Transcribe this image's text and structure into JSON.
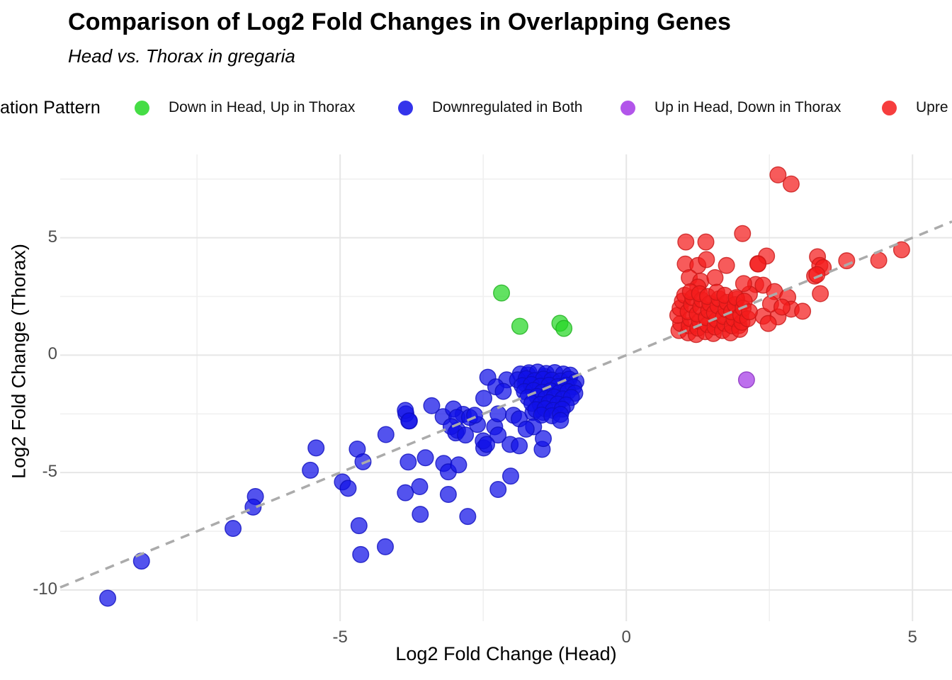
{
  "title": "Comparison of Log2 Fold Changes in Overlapping Genes",
  "subtitle": "Head vs. Thorax in gregaria",
  "legend": {
    "title": "ation Pattern",
    "note": "legend title and last item are cropped at the image edges",
    "items": [
      {
        "label": "Down in Head, Up in Thorax",
        "color": "#25D725"
      },
      {
        "label": "Downregulated in Both",
        "color": "#1111E8"
      },
      {
        "label": "Up in Head, Down in Thorax",
        "color": "#A437E6"
      },
      {
        "label": "Upre",
        "color": "#F41C1C"
      }
    ]
  },
  "chart_data": {
    "type": "scatter",
    "title": "Comparison of Log2 Fold Changes in Overlapping Genes",
    "subtitle": "Head vs. Thorax in gregaria",
    "xlabel": "Log2 Fold Change (Head)",
    "ylabel": "Log2 Fold Change (Thorax)",
    "xlim": [
      -9.89,
      5.69
    ],
    "ylim": [
      -11.33,
      8.55
    ],
    "x_ticks": [
      -5,
      0,
      5
    ],
    "y_ticks": [
      -10,
      -5,
      0,
      5
    ],
    "x_minor_ticks": [
      -7.5,
      -2.5,
      2.5
    ],
    "y_minor_ticks": [
      -7.5,
      -2.5,
      2.5,
      7.5
    ],
    "grid": true,
    "legend_position": "top",
    "grid_major_color": "#E6E6E6",
    "grid_minor_color": "#F0F0F0",
    "reference_line": {
      "type": "identity y=x",
      "style": "dashed",
      "color": "#ABABAB"
    },
    "series": [
      {
        "name": "Down in Head, Up in Thorax",
        "color": "#25D725",
        "points": [
          [
            -2.18,
            2.65
          ],
          [
            -1.86,
            1.23
          ],
          [
            -1.16,
            1.36
          ],
          [
            -1.09,
            1.14
          ]
        ]
      },
      {
        "name": "Downregulated in Both",
        "color": "#1111E8",
        "points": [
          [
            -9.06,
            -10.35
          ],
          [
            -8.47,
            -8.77
          ],
          [
            -6.87,
            -7.38
          ],
          [
            -6.48,
            -6.02
          ],
          [
            -6.52,
            -6.47
          ],
          [
            -5.42,
            -3.95
          ],
          [
            -5.52,
            -4.9
          ],
          [
            -4.96,
            -5.4
          ],
          [
            -4.86,
            -5.67
          ],
          [
            -4.7,
            -4.0
          ],
          [
            -4.6,
            -4.54
          ],
          [
            -4.2,
            -3.38
          ],
          [
            -3.85,
            -2.5
          ],
          [
            -3.8,
            -2.8
          ],
          [
            -3.81,
            -4.55
          ],
          [
            -3.51,
            -4.37
          ],
          [
            -3.86,
            -5.86
          ],
          [
            -3.61,
            -5.6
          ],
          [
            -3.6,
            -6.78
          ],
          [
            -3.19,
            -4.61
          ],
          [
            -3.11,
            -4.97
          ],
          [
            -2.93,
            -4.67
          ],
          [
            -3.11,
            -5.93
          ],
          [
            -2.77,
            -6.87
          ],
          [
            -4.67,
            -7.26
          ],
          [
            -4.64,
            -8.49
          ],
          [
            -4.21,
            -8.16
          ],
          [
            -2.24,
            -5.72
          ],
          [
            -2.02,
            -5.15
          ],
          [
            -2.49,
            -3.95
          ],
          [
            -2.5,
            -3.65
          ],
          [
            -2.03,
            -3.8
          ],
          [
            -1.47,
            -4.01
          ],
          [
            -2.3,
            -3.05
          ],
          [
            -2.6,
            -2.95
          ],
          [
            -2.85,
            -2.52
          ],
          [
            -3.2,
            -2.62
          ],
          [
            -2.95,
            -3.2
          ],
          [
            -3.4,
            -2.15
          ],
          [
            -2.42,
            -0.94
          ],
          [
            -2.09,
            -1.05
          ],
          [
            -1.72,
            -0.84
          ],
          [
            -1.43,
            -0.9
          ],
          [
            -2.28,
            -1.35
          ],
          [
            -2.15,
            -1.54
          ],
          [
            -1.76,
            -1.23
          ],
          [
            -2.49,
            -1.84
          ],
          [
            -2.24,
            -2.5
          ],
          [
            -3.02,
            -2.29
          ],
          [
            -2.96,
            -2.65
          ],
          [
            -3.86,
            -2.35
          ],
          [
            -3.79,
            -2.8
          ],
          [
            -3.06,
            -3.04
          ],
          [
            -2.74,
            -2.65
          ],
          [
            -2.65,
            -2.56
          ],
          [
            -1.97,
            -2.56
          ],
          [
            -1.87,
            -2.71
          ],
          [
            -1.63,
            -2.44
          ],
          [
            -1.45,
            -2.44
          ],
          [
            -2.98,
            -3.31
          ],
          [
            -2.81,
            -3.4
          ],
          [
            -2.24,
            -3.4
          ],
          [
            -2.44,
            -3.8
          ],
          [
            -1.87,
            -3.86
          ],
          [
            -1.45,
            -3.55
          ],
          [
            -1.85,
            -0.8
          ],
          [
            -1.7,
            -0.75
          ],
          [
            -1.55,
            -0.72
          ],
          [
            -1.4,
            -0.78
          ],
          [
            -1.25,
            -0.74
          ],
          [
            -1.1,
            -0.8
          ],
          [
            -0.98,
            -0.85
          ],
          [
            -1.9,
            -1.05
          ],
          [
            -1.75,
            -1.0
          ],
          [
            -1.6,
            -1.08
          ],
          [
            -1.45,
            -1.02
          ],
          [
            -1.3,
            -1.06
          ],
          [
            -1.15,
            -1.1
          ],
          [
            -1.0,
            -1.02
          ],
          [
            -0.88,
            -1.12
          ],
          [
            -1.82,
            -1.3
          ],
          [
            -1.66,
            -1.25
          ],
          [
            -1.5,
            -1.32
          ],
          [
            -1.35,
            -1.28
          ],
          [
            -1.2,
            -1.34
          ],
          [
            -1.05,
            -1.28
          ],
          [
            -0.92,
            -1.35
          ],
          [
            -1.78,
            -1.55
          ],
          [
            -1.62,
            -1.5
          ],
          [
            -1.47,
            -1.58
          ],
          [
            -1.32,
            -1.52
          ],
          [
            -1.17,
            -1.6
          ],
          [
            -1.02,
            -1.55
          ],
          [
            -0.9,
            -1.62
          ],
          [
            -1.72,
            -1.8
          ],
          [
            -1.56,
            -1.76
          ],
          [
            -1.41,
            -1.84
          ],
          [
            -1.26,
            -1.78
          ],
          [
            -1.11,
            -1.86
          ],
          [
            -0.96,
            -1.8
          ],
          [
            -1.65,
            -2.05
          ],
          [
            -1.5,
            -2.1
          ],
          [
            -1.35,
            -2.02
          ],
          [
            -1.2,
            -2.08
          ],
          [
            -1.05,
            -2.12
          ],
          [
            -1.58,
            -2.32
          ],
          [
            -1.42,
            -2.28
          ],
          [
            -1.28,
            -2.35
          ],
          [
            -1.12,
            -2.3
          ],
          [
            -1.48,
            -2.55
          ],
          [
            -1.3,
            -2.58
          ],
          [
            -1.15,
            -2.52
          ],
          [
            -1.62,
            -3.05
          ],
          [
            -1.75,
            -3.15
          ],
          [
            -1.15,
            -2.78
          ]
        ]
      },
      {
        "name": "Up in Head, Down in Thorax",
        "color": "#A437E6",
        "points": [
          [
            2.1,
            -1.05
          ]
        ]
      },
      {
        "name": "Upre",
        "color": "#F41C1C",
        "points": [
          [
            1.04,
            4.82
          ],
          [
            1.39,
            4.82
          ],
          [
            2.03,
            5.18
          ],
          [
            2.65,
            7.68
          ],
          [
            2.88,
            7.29
          ],
          [
            1.03,
            3.88
          ],
          [
            1.25,
            3.82
          ],
          [
            1.4,
            4.07
          ],
          [
            1.75,
            3.82
          ],
          [
            2.3,
            3.9
          ],
          [
            2.45,
            4.22
          ],
          [
            3.34,
            4.19
          ],
          [
            3.38,
            3.82
          ],
          [
            3.85,
            4.02
          ],
          [
            4.41,
            4.04
          ],
          [
            4.81,
            4.49
          ],
          [
            3.29,
            3.37
          ],
          [
            3.39,
            2.62
          ],
          [
            2.26,
            3.01
          ],
          [
            2.39,
            2.98
          ],
          [
            2.59,
            2.71
          ],
          [
            2.82,
            2.47
          ],
          [
            2.88,
            1.96
          ],
          [
            3.08,
            1.87
          ],
          [
            2.39,
            1.66
          ],
          [
            2.65,
            1.63
          ],
          [
            1.97,
            1.26
          ],
          [
            1.93,
            2.38
          ],
          [
            2.15,
            2.6
          ],
          [
            2.05,
            3.05
          ],
          [
            1.1,
            3.3
          ],
          [
            1.3,
            3.15
          ],
          [
            1.55,
            3.3
          ],
          [
            1.25,
            2.9
          ],
          [
            3.44,
            3.73
          ],
          [
            3.33,
            3.43
          ],
          [
            2.3,
            3.88
          ],
          [
            2.52,
            2.18
          ],
          [
            2.72,
            2.05
          ],
          [
            2.48,
            1.35
          ],
          [
            0.92,
            1.05
          ],
          [
            0.95,
            1.35
          ],
          [
            0.9,
            1.7
          ],
          [
            0.94,
            2.0
          ],
          [
            0.98,
            2.3
          ],
          [
            1.02,
            2.55
          ],
          [
            1.08,
            0.95
          ],
          [
            1.1,
            1.25
          ],
          [
            1.12,
            1.55
          ],
          [
            1.08,
            1.85
          ],
          [
            1.14,
            2.15
          ],
          [
            1.16,
            2.45
          ],
          [
            1.12,
            2.7
          ],
          [
            1.22,
            0.88
          ],
          [
            1.25,
            1.15
          ],
          [
            1.28,
            1.45
          ],
          [
            1.24,
            1.75
          ],
          [
            1.3,
            2.05
          ],
          [
            1.32,
            2.35
          ],
          [
            1.28,
            2.62
          ],
          [
            1.38,
            1.0
          ],
          [
            1.42,
            1.3
          ],
          [
            1.4,
            1.6
          ],
          [
            1.44,
            1.9
          ],
          [
            1.46,
            2.2
          ],
          [
            1.42,
            2.5
          ],
          [
            1.52,
            0.92
          ],
          [
            1.55,
            1.2
          ],
          [
            1.58,
            1.5
          ],
          [
            1.54,
            1.8
          ],
          [
            1.6,
            2.1
          ],
          [
            1.62,
            2.4
          ],
          [
            1.58,
            2.68
          ],
          [
            1.68,
            1.05
          ],
          [
            1.72,
            1.35
          ],
          [
            1.7,
            1.65
          ],
          [
            1.74,
            1.95
          ],
          [
            1.76,
            2.25
          ],
          [
            1.72,
            2.55
          ],
          [
            1.82,
            0.95
          ],
          [
            1.85,
            1.25
          ],
          [
            1.88,
            1.55
          ],
          [
            1.84,
            1.85
          ],
          [
            1.9,
            2.15
          ],
          [
            1.92,
            2.45
          ],
          [
            1.98,
            1.1
          ],
          [
            2.02,
            1.4
          ],
          [
            2.0,
            1.7
          ],
          [
            2.04,
            2.0
          ],
          [
            2.06,
            2.3
          ],
          [
            2.12,
            1.55
          ],
          [
            2.15,
            1.85
          ]
        ]
      }
    ]
  }
}
